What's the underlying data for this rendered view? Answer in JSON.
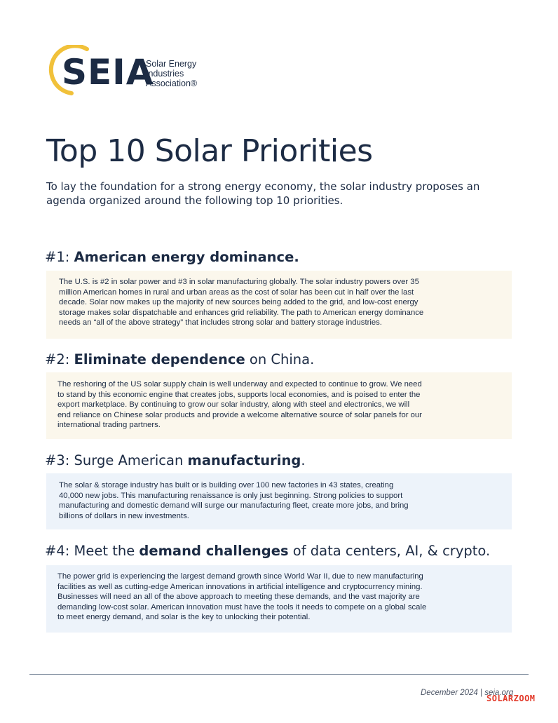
{
  "logo": {
    "mark": "SEIA",
    "name_lines": [
      "Solar Energy",
      "Industries",
      "Association®"
    ]
  },
  "title": "Top 10 Solar Priorities",
  "intro": "To lay the foundation for a strong energy economy, the solar industry proposes an agenda organized around the following top 10 priorities.",
  "priorities": [
    {
      "number": "#1:",
      "pre": "",
      "bold": "American energy dominance.",
      "post": "",
      "body": [
        "The U.S. is #2 in solar power and #3 in solar manufacturing globally. The solar industry powers over 35",
        "million American homes in rural and urban areas as the cost of solar has been cut in half over the last",
        "decade. Solar now makes up the majority of new sources being added to the grid, and low-cost energy",
        "storage makes solar dispatchable and enhances grid reliability. The path to American energy dominance",
        "needs an “all of the above strategy” that includes strong solar and battery storage industries."
      ]
    },
    {
      "number": "#2:",
      "pre": "",
      "bold": "Eliminate dependence",
      "post": "on China.",
      "body": [
        "The reshoring of the US solar supply chain is well underway and expected to continue to grow. We need",
        "to stand by this economic engine that creates jobs, supports local economies, and is poised to enter the",
        "export marketplace. By continuing to grow our solar industry, along with steel and electronics, we will",
        "end reliance on Chinese solar products and provide a welcome alternative source of solar panels for our",
        "international trading partners."
      ]
    },
    {
      "number": "#3:",
      "pre": "Surge American",
      "bold": "manufacturing",
      "post": ".",
      "body": [
        "The solar & storage industry has built or is building over 100 new factories in 43 states, creating",
        "40,000 new jobs. This manufacturing renaissance is only just beginning. Strong policies to support",
        "manufacturing and domestic demand will surge our manufacturing fleet, create more jobs, and bring",
        "billions of dollars in new investments."
      ]
    },
    {
      "number": "#4:",
      "pre": "Meet the",
      "bold": "demand challenges",
      "post": "of data centers, AI, & crypto.",
      "body": [
        "The power grid is experiencing the largest demand growth since World War II, due to new manufacturing",
        "facilities as well as cutting-edge American innovations in artificial intelligence and cryptocurrency mining.",
        "Businesses will need an all of the above approach to meeting these demands, and the vast majority are",
        "demanding low-cost solar. American innovation must have the tools it needs to compete on a global scale",
        "to meet energy demand, and solar is the key to unlocking their potential."
      ]
    }
  ],
  "footer": "December 2024 | seia.org",
  "watermark": "SOLARZOOM",
  "colors": {
    "navy": "#1c2b44",
    "gold": "#f1c13a",
    "cream_box": "#fbf7ec",
    "blue_box": "#edf3fa"
  }
}
